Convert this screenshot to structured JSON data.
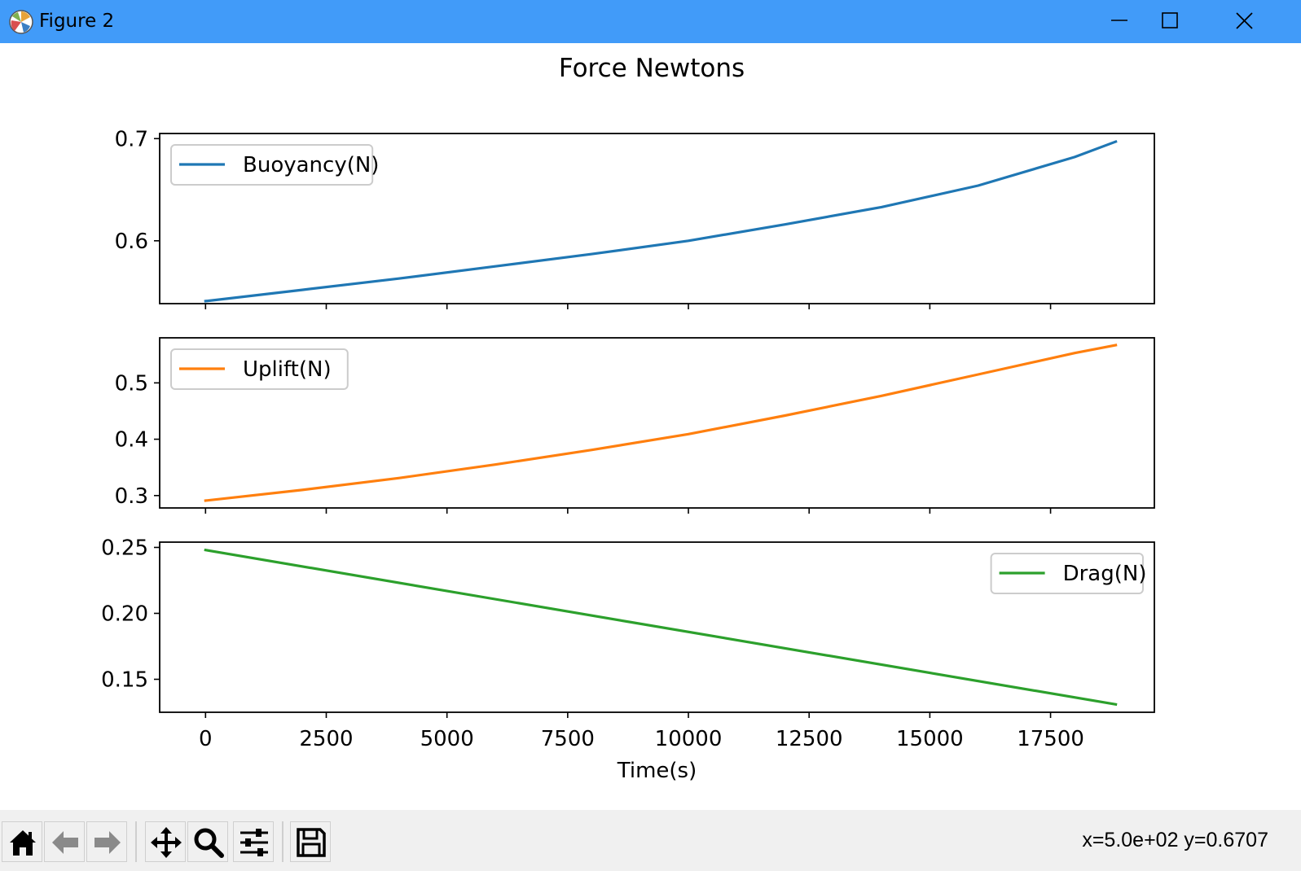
{
  "window": {
    "title": "Figure 2",
    "controls": [
      "minimize",
      "maximize",
      "close"
    ]
  },
  "toolbar": {
    "buttons": [
      "home-icon",
      "back-icon",
      "forward-icon",
      "pan-icon",
      "zoom-icon",
      "configure-subplots-icon",
      "save-icon"
    ],
    "coords_text": "x=5.0e+02 y=0.6707"
  },
  "chart_data": {
    "type": "line",
    "title": "Force Newtons",
    "xlabel": "Time(s)",
    "xlim": [
      -950,
      19650
    ],
    "x_ticks": [
      0,
      2500,
      5000,
      7500,
      10000,
      12500,
      15000,
      17500
    ],
    "x_tick_labels": [
      "0",
      "2500",
      "5000",
      "7500",
      "10000",
      "12500",
      "15000",
      "17500"
    ],
    "grid": false,
    "subplots": [
      {
        "series": [
          {
            "name": "Buoyancy(N)",
            "color": "#1f77b4",
            "x": [
              0,
              2000,
              4000,
              6000,
              8000,
              10000,
              12000,
              14000,
              16000,
              18000,
              18850
            ],
            "y": [
              0.541,
              0.552,
              0.563,
              0.575,
              0.587,
              0.6,
              0.616,
              0.633,
              0.654,
              0.682,
              0.697
            ]
          }
        ],
        "ylim": [
          0.5385,
          0.705
        ],
        "y_ticks": [
          0.6,
          0.7
        ],
        "y_tick_labels": [
          "0.6",
          "0.7"
        ],
        "legend": "upper left",
        "show_x_tick_labels": false
      },
      {
        "series": [
          {
            "name": "Uplift(N)",
            "color": "#ff7f0e",
            "x": [
              0,
              2000,
              4000,
              6000,
              8000,
              10000,
              12000,
              14000,
              16000,
              18000,
              18850
            ],
            "y": [
              0.291,
              0.31,
              0.331,
              0.355,
              0.381,
              0.409,
              0.442,
              0.477,
              0.515,
              0.553,
              0.567
            ]
          }
        ],
        "ylim": [
          0.278,
          0.58
        ],
        "y_ticks": [
          0.3,
          0.4,
          0.5
        ],
        "y_tick_labels": [
          "0.3",
          "0.4",
          "0.5"
        ],
        "legend": "upper left",
        "show_x_tick_labels": false
      },
      {
        "series": [
          {
            "name": "Drag(N)",
            "color": "#2ca02c",
            "x": [
              0,
              18850
            ],
            "y": [
              0.248,
              0.131
            ]
          }
        ],
        "ylim": [
          0.125,
          0.254
        ],
        "y_ticks": [
          0.15,
          0.2,
          0.25
        ],
        "y_tick_labels": [
          "0.15",
          "0.20",
          "0.25"
        ],
        "legend": "upper right",
        "show_x_tick_labels": true
      }
    ]
  }
}
